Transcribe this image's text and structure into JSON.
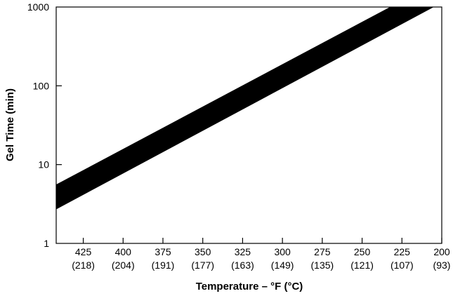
{
  "chart_data": {
    "type": "area",
    "title": "",
    "xlabel": "Temperature – °F (°C)",
    "ylabel": "Gel Time (min)",
    "x_scale": "linear",
    "x_reversed": true,
    "xlim": [
      442,
      200
    ],
    "y_scale": "log",
    "ylim": [
      1,
      1000
    ],
    "grid": false,
    "legend": "none",
    "x_ticks": [
      {
        "f": 425,
        "label": "425",
        "sublabel": "(218)"
      },
      {
        "f": 400,
        "label": "400",
        "sublabel": "(204)"
      },
      {
        "f": 375,
        "label": "375",
        "sublabel": "(191)"
      },
      {
        "f": 350,
        "label": "350",
        "sublabel": "(177)"
      },
      {
        "f": 325,
        "label": "325",
        "sublabel": "(163)"
      },
      {
        "f": 300,
        "label": "300",
        "sublabel": "(149)"
      },
      {
        "f": 275,
        "label": "275",
        "sublabel": "(135)"
      },
      {
        "f": 250,
        "label": "250",
        "sublabel": "(121)"
      },
      {
        "f": 225,
        "label": "225",
        "sublabel": "(107)"
      },
      {
        "f": 200,
        "label": "200",
        "sublabel": "(93)"
      }
    ],
    "y_ticks": [
      {
        "value": 1,
        "label": "1"
      },
      {
        "value": 10,
        "label": "10"
      },
      {
        "value": 100,
        "label": "100"
      },
      {
        "value": 1000,
        "label": "1000"
      }
    ],
    "band": {
      "color": "#000000",
      "upper": [
        {
          "x": 442,
          "y": 5.6
        },
        {
          "x": 232.5,
          "y": 1000
        }
      ],
      "lower": [
        {
          "x": 442,
          "y": 2.7
        },
        {
          "x": 205,
          "y": 1000
        }
      ]
    }
  }
}
